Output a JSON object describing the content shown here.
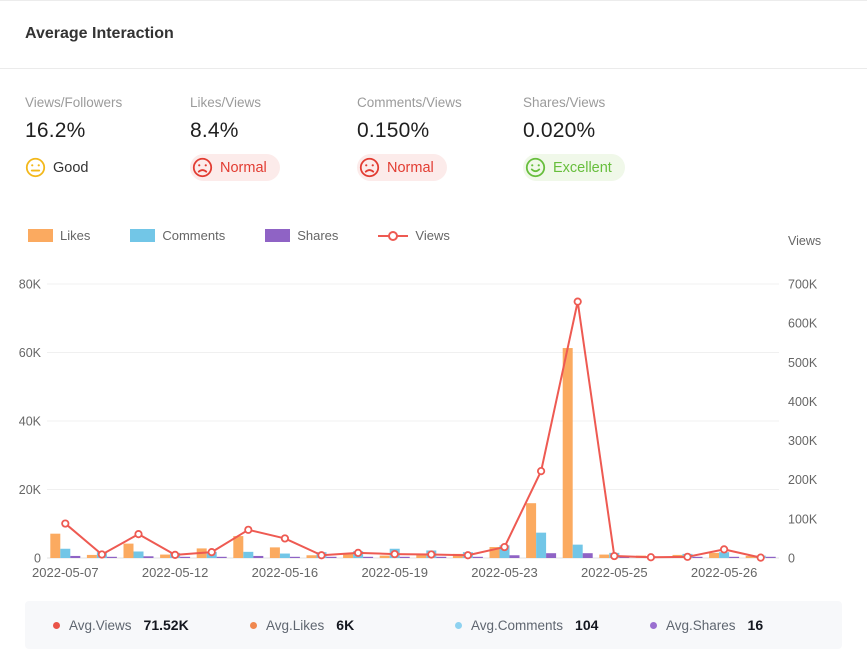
{
  "header": {
    "title": "Average Interaction"
  },
  "metrics": [
    {
      "label": "Views/Followers",
      "value": "16.2%",
      "status": "Good",
      "face": "neutral",
      "icon_color": "#f3b81b",
      "text_color": "#333333",
      "pill_bg": "transparent"
    },
    {
      "label": "Likes/Views",
      "value": "8.4%",
      "status": "Normal",
      "face": "sad",
      "icon_color": "#e23c32",
      "text_color": "#e23c32",
      "pill_bg": "#fcebea"
    },
    {
      "label": "Comments/Views",
      "value": "0.150%",
      "status": "Normal",
      "face": "sad",
      "icon_color": "#e23c32",
      "text_color": "#e23c32",
      "pill_bg": "#fcebea"
    },
    {
      "label": "Shares/Views",
      "value": "0.020%",
      "status": "Excellent",
      "face": "happy",
      "icon_color": "#67be3c",
      "text_color": "#67be3c",
      "pill_bg": "#f0f8e9"
    }
  ],
  "legend": [
    {
      "label": "Likes",
      "type": "bar",
      "color": "#fbaa60"
    },
    {
      "label": "Comments",
      "type": "bar",
      "color": "#72c6e7"
    },
    {
      "label": "Shares",
      "type": "bar",
      "color": "#8f63c5"
    },
    {
      "label": "Views",
      "type": "line",
      "color": "#ee5a52"
    }
  ],
  "chart_data": {
    "type": "bar+line",
    "point_count": 20,
    "x_tick_labels": [
      {
        "index": 0,
        "label": "2022-05-07"
      },
      {
        "index": 3,
        "label": "2022-05-12"
      },
      {
        "index": 6,
        "label": "2022-05-16"
      },
      {
        "index": 9,
        "label": "2022-05-19"
      },
      {
        "index": 12,
        "label": "2022-05-23"
      },
      {
        "index": 15,
        "label": "2022-05-25"
      },
      {
        "index": 18,
        "label": "2022-05-26"
      }
    ],
    "left_axis": {
      "ticks": [
        "0",
        "20K",
        "40K",
        "60K",
        "80K"
      ],
      "max_k": 80
    },
    "right_axis": {
      "title": "Views",
      "ticks": [
        "0",
        "100K",
        "200K",
        "300K",
        "400K",
        "500K",
        "600K",
        "700K"
      ],
      "max_k": 700
    },
    "series": [
      {
        "name": "Likes",
        "type": "bar",
        "axis": "left",
        "color": "#fbaa60",
        "values_k": [
          7.1,
          0.9,
          4.2,
          1.0,
          2.8,
          6.4,
          3.1,
          0.8,
          1.4,
          0.7,
          1.0,
          1.2,
          3.2,
          16.0,
          61.3,
          1.0,
          0.7,
          0.9,
          1.5,
          0.6
        ]
      },
      {
        "name": "Comments",
        "type": "bar",
        "axis": "left",
        "color": "#72c6e7",
        "values_k": [
          2.7,
          1.7,
          1.9,
          1.5,
          1.8,
          1.8,
          1.3,
          1.7,
          2.0,
          2.7,
          2.2,
          1.7,
          3.7,
          7.4,
          3.9,
          1.5,
          0.5,
          1.2,
          1.7,
          0.7
        ]
      },
      {
        "name": "Shares",
        "type": "bar",
        "axis": "left",
        "color": "#8f63c5",
        "values_k": [
          0.6,
          0.3,
          0.5,
          0.25,
          0.3,
          0.6,
          0.3,
          0.15,
          0.2,
          0.2,
          0.2,
          0.2,
          0.8,
          1.4,
          1.4,
          0.2,
          0.1,
          0.15,
          0.3,
          0.1
        ]
      },
      {
        "name": "Views",
        "type": "line",
        "axis": "right",
        "color": "#ee5a52",
        "marker": "open-circle",
        "values_k": [
          88,
          9,
          61,
          8,
          15,
          72,
          50,
          7,
          13,
          10,
          9,
          7,
          28,
          222,
          655,
          5,
          2,
          3,
          22,
          1
        ]
      }
    ],
    "grid": "horizontal-light"
  },
  "summary": [
    {
      "label": "Avg.Views",
      "value": "71.52K",
      "dot_color": "#ea5448"
    },
    {
      "label": "Avg.Likes",
      "value": "6K",
      "dot_color": "#f0884f"
    },
    {
      "label": "Avg.Comments",
      "value": "104",
      "dot_color": "#8ed2f0"
    },
    {
      "label": "Avg.Shares",
      "value": "16",
      "dot_color": "#9a6fd0"
    }
  ]
}
